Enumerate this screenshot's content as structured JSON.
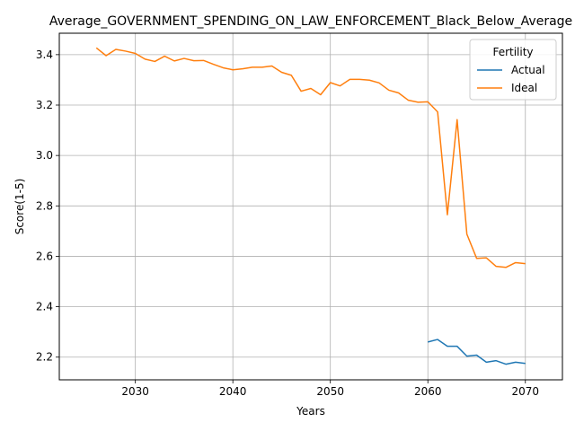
{
  "chart_data": {
    "type": "line",
    "title": "Average_GOVERNMENT_SPENDING_ON_LAW_ENFORCEMENT_Black_Below_Average",
    "xlabel": "Years",
    "ylabel": "Score(1-5)",
    "xlim": [
      2022.2,
      2073.8
    ],
    "ylim": [
      2.11,
      3.485
    ],
    "xticks": [
      2030,
      2040,
      2050,
      2060,
      2070
    ],
    "yticks": [
      2.2,
      2.4,
      2.6,
      2.8,
      3.0,
      3.2,
      3.4
    ],
    "ytick_labels": [
      "2.2",
      "2.4",
      "2.6",
      "2.8",
      "3.0",
      "3.2",
      "3.4"
    ],
    "grid": true,
    "legend": {
      "title": "Fertility",
      "position": "top-right"
    },
    "series": [
      {
        "name": "Actual",
        "color": "#1f77b4",
        "x": [
          2060,
          2061,
          2062,
          2063,
          2064,
          2065,
          2066,
          2067,
          2068,
          2069,
          2070
        ],
        "y": [
          2.26,
          2.27,
          2.243,
          2.243,
          2.204,
          2.208,
          2.18,
          2.186,
          2.172,
          2.18,
          2.175
        ]
      },
      {
        "name": "Ideal",
        "color": "#ff7f0e",
        "x": [
          2026,
          2027,
          2028,
          2029,
          2030,
          2031,
          2032,
          2033,
          2034,
          2035,
          2036,
          2037,
          2038,
          2039,
          2040,
          2041,
          2042,
          2043,
          2044,
          2045,
          2046,
          2047,
          2048,
          2049,
          2050,
          2051,
          2052,
          2053,
          2054,
          2055,
          2056,
          2057,
          2058,
          2059,
          2060,
          2061,
          2062,
          2063,
          2064,
          2065,
          2066,
          2067,
          2068,
          2069,
          2070
        ],
        "y": [
          3.427,
          3.396,
          3.421,
          3.414,
          3.405,
          3.382,
          3.373,
          3.394,
          3.375,
          3.385,
          3.376,
          3.377,
          3.362,
          3.348,
          3.34,
          3.344,
          3.35,
          3.35,
          3.355,
          3.33,
          3.318,
          3.255,
          3.266,
          3.241,
          3.289,
          3.276,
          3.302,
          3.302,
          3.299,
          3.288,
          3.259,
          3.248,
          3.219,
          3.211,
          3.213,
          3.173,
          2.765,
          3.142,
          2.688,
          2.592,
          2.594,
          2.56,
          2.556,
          2.575,
          2.571
        ]
      }
    ]
  }
}
